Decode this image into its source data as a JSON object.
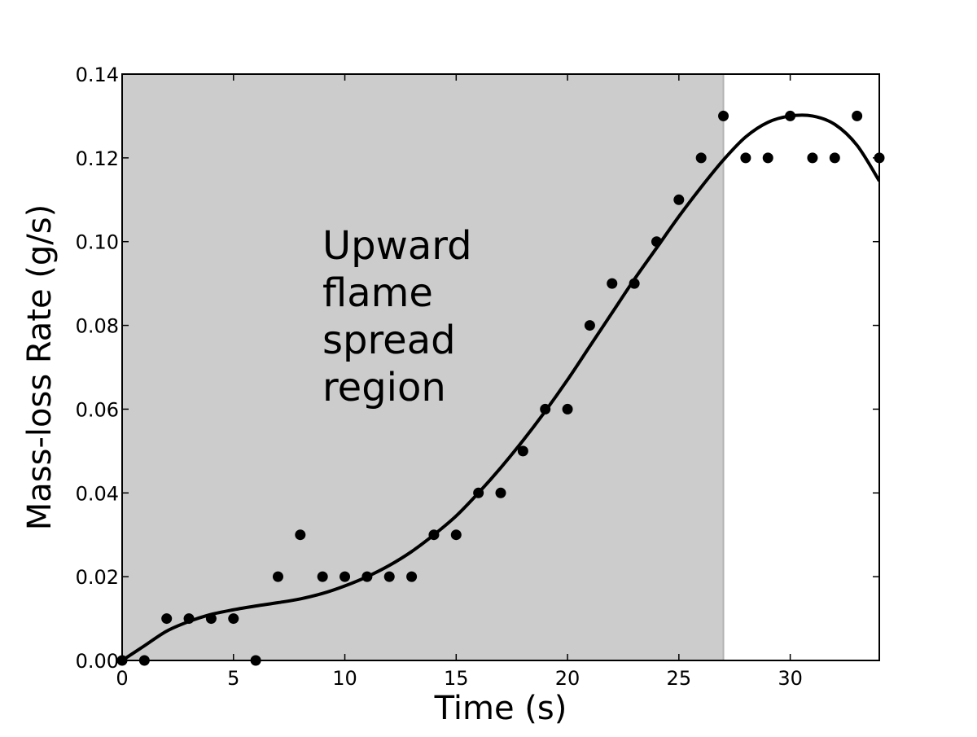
{
  "chart_data": {
    "type": "scatter",
    "title": "",
    "xlabel": "Time (s)",
    "ylabel": "Mass-loss Rate (g/s)",
    "xlim": [
      0,
      34
    ],
    "ylim": [
      0,
      0.14
    ],
    "grid": false,
    "x_ticks": [
      0,
      5,
      10,
      15,
      20,
      25,
      30
    ],
    "x_tick_labels": [
      "0",
      "5",
      "10",
      "15",
      "20",
      "25",
      "30"
    ],
    "y_ticks": [
      0,
      0.02,
      0.04,
      0.06,
      0.08,
      0.1,
      0.12,
      0.14
    ],
    "y_tick_labels": [
      "0.00",
      "0.02",
      "0.04",
      "0.06",
      "0.08",
      "0.10",
      "0.12",
      "0.14"
    ],
    "shaded_region": {
      "x_start": 0,
      "x_end": 27,
      "color": "#cccccc",
      "label_lines": [
        "Upward",
        "flame",
        "spread",
        "region"
      ]
    },
    "series": [
      {
        "kind": "points",
        "color": "#000000",
        "x": [
          0,
          1,
          2,
          3,
          4,
          5,
          6,
          7,
          8,
          9,
          10,
          11,
          12,
          13,
          14,
          15,
          16,
          17,
          18,
          19,
          20,
          21,
          22,
          23,
          24,
          25,
          26,
          27,
          28,
          29,
          30,
          31,
          32,
          33,
          34
        ],
        "y": [
          0.0,
          0.0,
          0.01,
          0.01,
          0.01,
          0.01,
          0.0,
          0.02,
          0.03,
          0.02,
          0.02,
          0.02,
          0.02,
          0.02,
          0.03,
          0.03,
          0.04,
          0.04,
          0.05,
          0.06,
          0.06,
          0.08,
          0.09,
          0.09,
          0.1,
          0.11,
          0.12,
          0.13,
          0.12,
          0.12,
          0.13,
          0.12,
          0.12,
          0.13,
          0.12
        ]
      },
      {
        "kind": "fit-curve",
        "color": "#000000",
        "x": [
          0,
          1,
          2,
          3,
          4,
          5,
          6,
          7,
          8,
          9,
          10,
          11,
          12,
          13,
          14,
          15,
          16,
          17,
          18,
          19,
          20,
          21,
          22,
          23,
          24,
          25,
          26,
          27,
          28,
          29,
          30,
          31,
          32,
          33,
          34
        ],
        "y": [
          0.0,
          0.0035,
          0.007,
          0.0093,
          0.011,
          0.0121,
          0.013,
          0.0138,
          0.0147,
          0.016,
          0.0178,
          0.02,
          0.0227,
          0.026,
          0.03,
          0.0345,
          0.04,
          0.046,
          0.0525,
          0.0595,
          0.067,
          0.075,
          0.083,
          0.091,
          0.0985,
          0.106,
          0.113,
          0.1195,
          0.125,
          0.1285,
          0.13,
          0.13,
          0.128,
          0.123,
          0.1145
        ]
      }
    ]
  }
}
